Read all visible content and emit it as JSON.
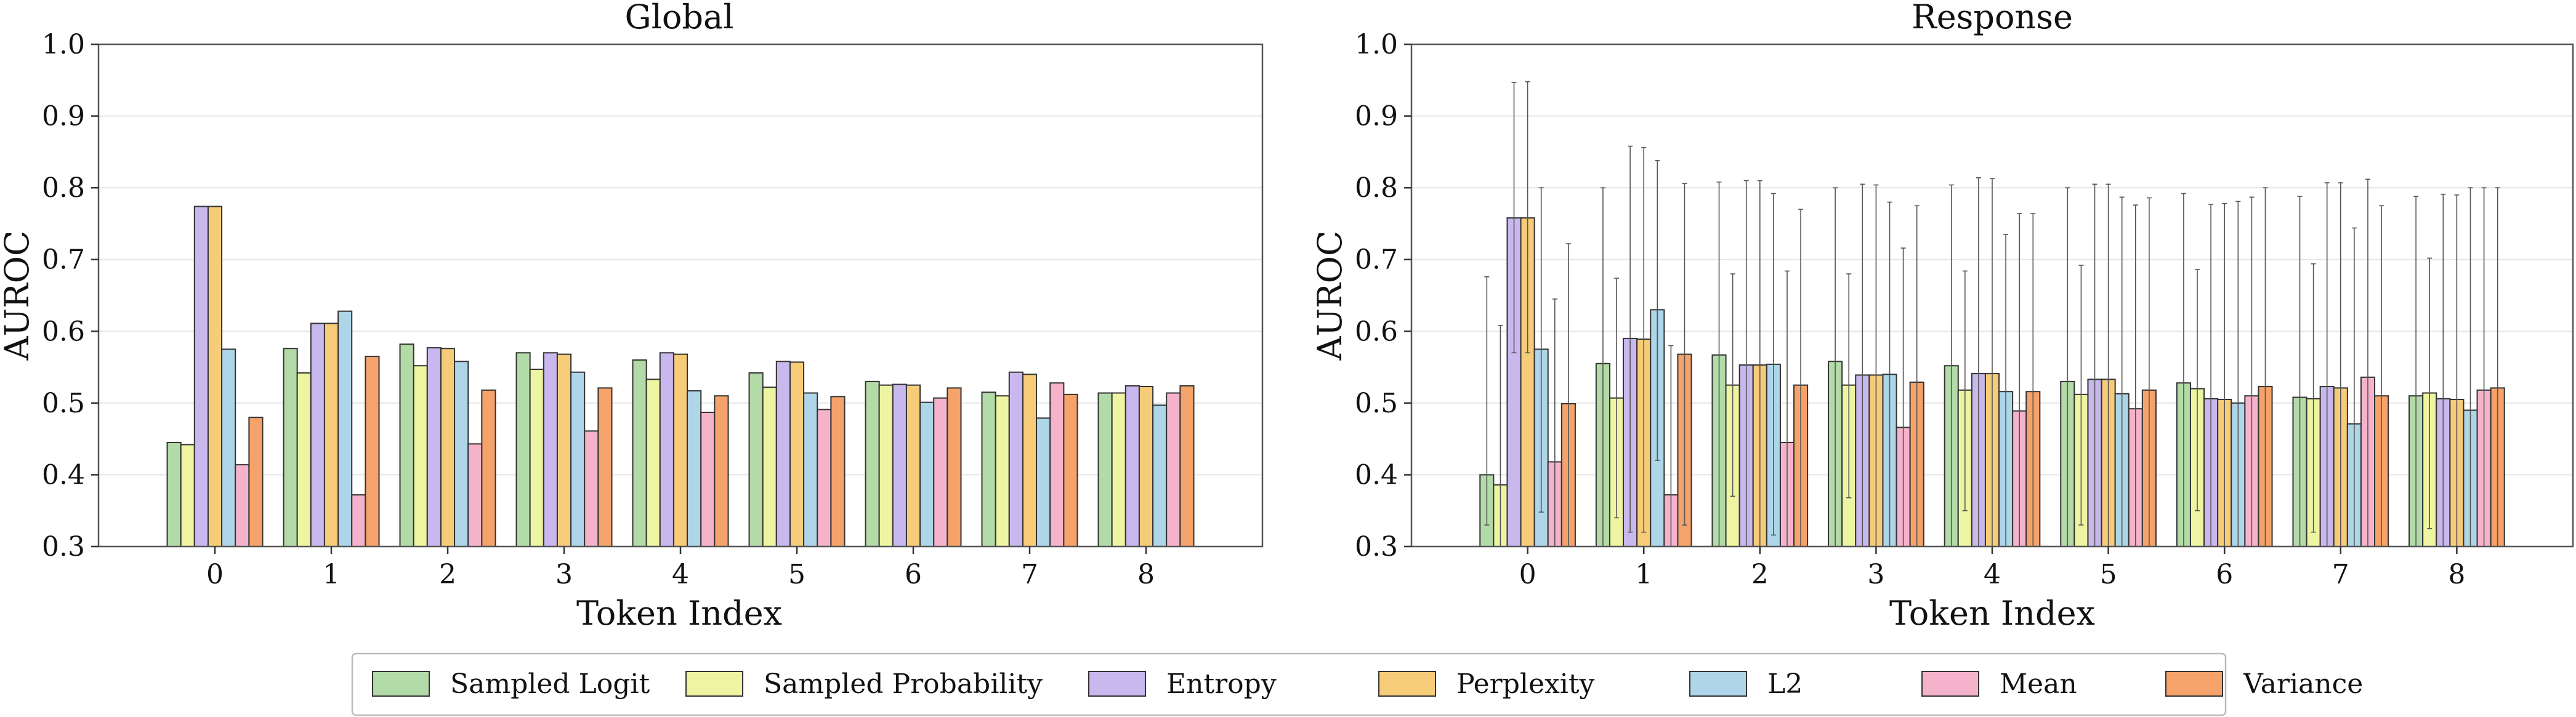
{
  "chart_data": [
    {
      "type": "bar",
      "title": "Global",
      "xlabel": "Token Index",
      "ylabel": "AUROC",
      "ylim": [
        0.3,
        1.0
      ],
      "yticks": [
        0.3,
        0.4,
        0.5,
        0.6,
        0.7,
        0.8,
        0.9,
        1.0
      ],
      "grid": "horizontal",
      "categories": [
        "0",
        "1",
        "2",
        "3",
        "4",
        "5",
        "6",
        "7",
        "8"
      ],
      "series": [
        {
          "name": "Sampled Logit",
          "values": [
            0.445,
            0.576,
            0.582,
            0.57,
            0.56,
            0.542,
            0.53,
            0.515,
            0.514
          ]
        },
        {
          "name": "Sampled Probability",
          "values": [
            0.442,
            0.542,
            0.552,
            0.547,
            0.533,
            0.522,
            0.525,
            0.51,
            0.514
          ]
        },
        {
          "name": "Entropy",
          "values": [
            0.774,
            0.611,
            0.577,
            0.57,
            0.57,
            0.558,
            0.526,
            0.543,
            0.524
          ]
        },
        {
          "name": "Perplexity",
          "values": [
            0.774,
            0.611,
            0.576,
            0.568,
            0.568,
            0.557,
            0.525,
            0.54,
            0.523
          ]
        },
        {
          "name": "L2",
          "values": [
            0.575,
            0.628,
            0.558,
            0.543,
            0.517,
            0.514,
            0.501,
            0.479,
            0.497
          ]
        },
        {
          "name": "Mean",
          "values": [
            0.414,
            0.372,
            0.443,
            0.461,
            0.487,
            0.491,
            0.507,
            0.528,
            0.514
          ]
        },
        {
          "name": "Variance",
          "values": [
            0.48,
            0.565,
            0.518,
            0.521,
            0.51,
            0.509,
            0.521,
            0.512,
            0.524
          ]
        }
      ]
    },
    {
      "type": "bar",
      "title": "Response",
      "xlabel": "Token Index",
      "ylabel": "AUROC",
      "ylim": [
        0.3,
        1.0
      ],
      "yticks": [
        0.3,
        0.4,
        0.5,
        0.6,
        0.7,
        0.8,
        0.9,
        1.0
      ],
      "grid": "horizontal",
      "error_bars": true,
      "categories": [
        "0",
        "1",
        "2",
        "3",
        "4",
        "5",
        "6",
        "7",
        "8"
      ],
      "series": [
        {
          "name": "Sampled Logit",
          "values": [
            0.4,
            0.555,
            0.567,
            0.558,
            0.552,
            0.53,
            0.528,
            0.508,
            0.51
          ],
          "err_low": [
            0.33,
            0.3,
            0.3,
            0.3,
            0.3,
            0.3,
            0.3,
            0.3,
            0.3
          ],
          "err_high": [
            0.676,
            0.8,
            0.808,
            0.8,
            0.804,
            0.8,
            0.792,
            0.788,
            0.788
          ]
        },
        {
          "name": "Sampled Probability",
          "values": [
            0.386,
            0.507,
            0.525,
            0.525,
            0.518,
            0.512,
            0.52,
            0.506,
            0.514
          ],
          "err_low": [
            0.3,
            0.34,
            0.37,
            0.368,
            0.35,
            0.33,
            0.35,
            0.32,
            0.325
          ],
          "err_high": [
            0.608,
            0.674,
            0.68,
            0.68,
            0.684,
            0.692,
            0.686,
            0.694,
            0.702
          ]
        },
        {
          "name": "Entropy",
          "values": [
            0.758,
            0.59,
            0.553,
            0.539,
            0.541,
            0.533,
            0.506,
            0.523,
            0.506
          ],
          "err_low": [
            0.57,
            0.32,
            0.3,
            0.3,
            0.3,
            0.3,
            0.3,
            0.3,
            0.3
          ],
          "err_high": [
            0.947,
            0.858,
            0.81,
            0.805,
            0.814,
            0.805,
            0.777,
            0.807,
            0.791
          ]
        },
        {
          "name": "Perplexity",
          "values": [
            0.758,
            0.589,
            0.553,
            0.539,
            0.541,
            0.533,
            0.505,
            0.521,
            0.505
          ],
          "err_low": [
            0.57,
            0.32,
            0.3,
            0.3,
            0.3,
            0.3,
            0.3,
            0.3,
            0.3
          ],
          "err_high": [
            0.948,
            0.856,
            0.81,
            0.804,
            0.813,
            0.805,
            0.778,
            0.807,
            0.79
          ]
        },
        {
          "name": "L2",
          "values": [
            0.575,
            0.63,
            0.554,
            0.54,
            0.516,
            0.513,
            0.5,
            0.471,
            0.49
          ],
          "err_low": [
            0.348,
            0.42,
            0.316,
            0.3,
            0.3,
            0.3,
            0.3,
            0.3,
            0.3
          ],
          "err_high": [
            0.8,
            0.838,
            0.792,
            0.78,
            0.735,
            0.787,
            0.781,
            0.744,
            0.8
          ]
        },
        {
          "name": "Mean",
          "values": [
            0.418,
            0.372,
            0.445,
            0.466,
            0.489,
            0.492,
            0.51,
            0.536,
            0.518
          ],
          "err_low": [
            0.3,
            0.3,
            0.3,
            0.3,
            0.3,
            0.3,
            0.3,
            0.3,
            0.3
          ],
          "err_high": [
            0.645,
            0.58,
            0.684,
            0.716,
            0.764,
            0.776,
            0.787,
            0.812,
            0.8
          ]
        },
        {
          "name": "Variance",
          "values": [
            0.499,
            0.568,
            0.525,
            0.529,
            0.516,
            0.518,
            0.523,
            0.51,
            0.521
          ],
          "err_low": [
            0.3,
            0.33,
            0.3,
            0.3,
            0.3,
            0.3,
            0.3,
            0.3,
            0.3
          ],
          "err_high": [
            0.722,
            0.806,
            0.77,
            0.775,
            0.764,
            0.786,
            0.8,
            0.775,
            0.8
          ]
        }
      ]
    }
  ],
  "legend": {
    "placement": "bottom-center",
    "items": [
      "Sampled Logit",
      "Sampled Probability",
      "Entropy",
      "Perplexity",
      "L2",
      "Mean",
      "Variance"
    ]
  },
  "colors": {
    "series": [
      "#b3dba8",
      "#eef5a2",
      "#c8b8ee",
      "#f6cc79",
      "#aed5e8",
      "#f5b3cb",
      "#f5a36a"
    ]
  }
}
